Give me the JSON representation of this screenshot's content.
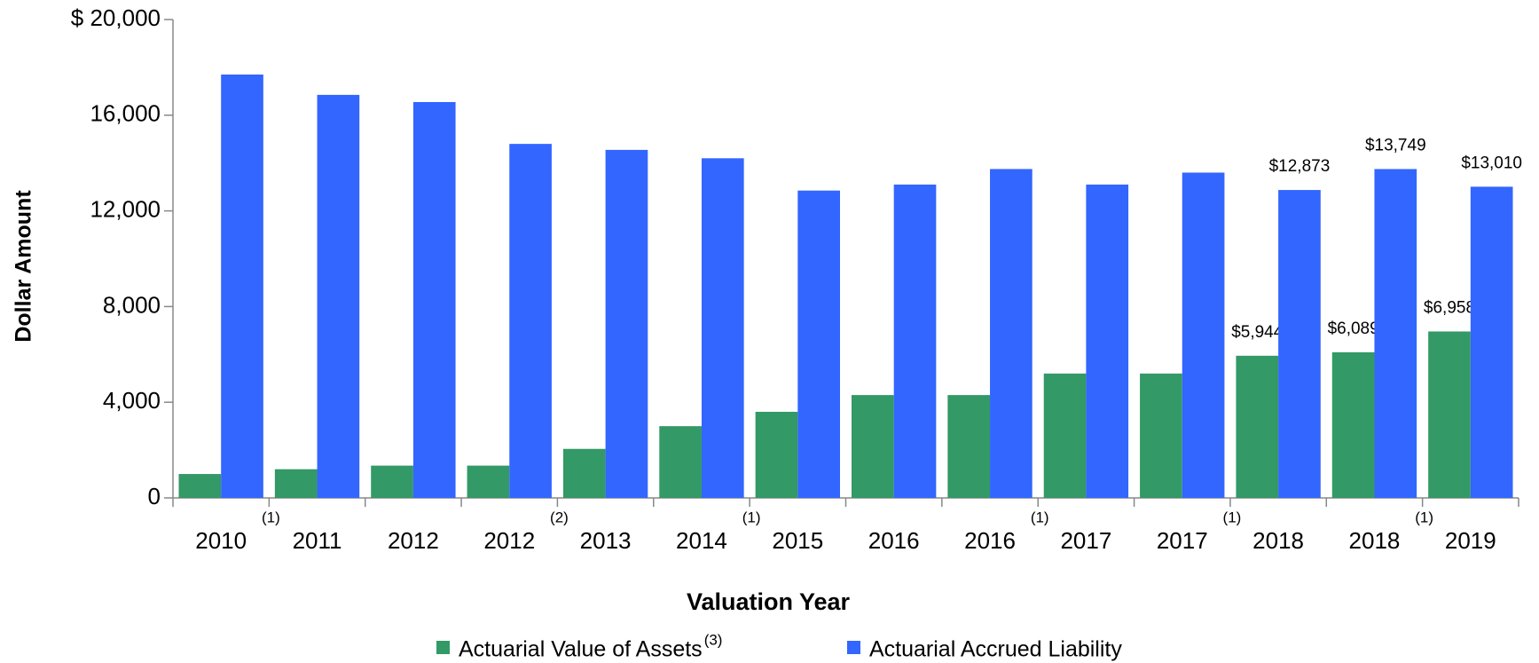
{
  "chart_data": {
    "type": "bar",
    "y_axis_title": "Dollar Amount",
    "x_axis_title": "Valuation  Year",
    "categories": [
      "2010",
      "2011",
      "2012",
      "2012",
      "2013",
      "2014",
      "2015",
      "2016",
      "2016",
      "2017",
      "2017",
      "2018",
      "2018",
      "2019"
    ],
    "category_notes": [
      "(1)",
      null,
      null,
      "(2)",
      null,
      "(1)",
      null,
      null,
      "(1)",
      null,
      "(1)",
      null,
      "(1)",
      null
    ],
    "series": [
      {
        "name": "Actuarial Value of Assets",
        "note": "(3)",
        "color": "#339966",
        "values": [
          1000,
          1200,
          1350,
          1350,
          2050,
          3000,
          3600,
          4300,
          4300,
          5200,
          5200,
          5944,
          6089,
          6958
        ],
        "value_labels": [
          null,
          null,
          null,
          null,
          null,
          null,
          null,
          null,
          null,
          null,
          null,
          "$5,944",
          "$6,089",
          "$6,958"
        ]
      },
      {
        "name": "Actuarial Accrued Liability",
        "color": "#3366ff",
        "values": [
          17700,
          16850,
          16550,
          14800,
          14550,
          14200,
          12850,
          13100,
          13750,
          13100,
          13600,
          12873,
          13749,
          13010
        ],
        "value_labels": [
          null,
          null,
          null,
          null,
          null,
          null,
          null,
          null,
          null,
          null,
          null,
          "$12,873",
          "$13,749",
          "$13,010"
        ]
      }
    ],
    "ylim": [
      0,
      20000
    ],
    "yticks": [
      0,
      {
        "value": 4000,
        "label": "4,000"
      },
      {
        "value": 8000,
        "label": "8,000"
      },
      {
        "value": 12000,
        "label": "12,000"
      },
      {
        "value": 16000,
        "label": "16,000"
      },
      {
        "value": 20000,
        "label": "$ 20,000"
      }
    ],
    "grid": false
  }
}
